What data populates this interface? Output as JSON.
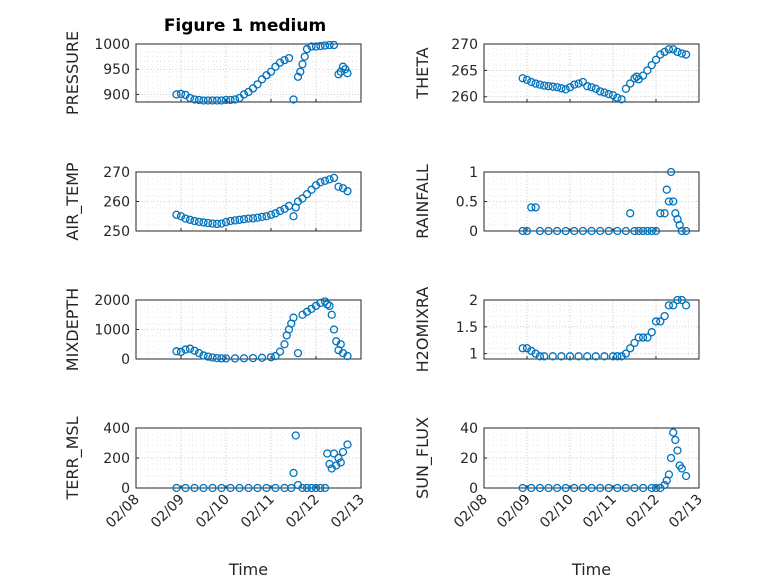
{
  "figure_title": "Figure 1 medium",
  "xtick_labels": [
    "02/08",
    "02/09",
    "02/10",
    "02/11",
    "02/12",
    "02/13"
  ],
  "marker_color": "#0072BD",
  "chart_data": [
    {
      "type": "scatter",
      "title": "Figure 1 medium",
      "xlabel": "",
      "ylabel": "PRESSURE",
      "xlim": [
        0,
        5
      ],
      "ylim": [
        885,
        1000
      ],
      "yticks": [
        900,
        950,
        1000
      ],
      "grid": true,
      "series": [
        {
          "x": [
            0.9,
            1.0,
            1.1,
            1.2,
            1.3,
            1.4,
            1.5,
            1.6,
            1.7,
            1.8,
            1.9,
            2.0,
            2.1,
            2.2,
            2.3,
            2.4,
            2.5,
            2.6,
            2.7,
            2.8,
            2.9,
            3.0,
            3.1,
            3.2,
            3.3,
            3.4,
            3.5,
            3.6,
            3.65,
            3.7,
            3.75,
            3.8,
            3.9,
            4.0,
            4.1,
            4.2,
            4.3,
            4.4,
            4.5,
            4.55,
            4.6,
            4.65,
            4.7
          ],
          "y": [
            900,
            901,
            899,
            893,
            890,
            889,
            888,
            888,
            888,
            888,
            888,
            889,
            889,
            890,
            893,
            900,
            905,
            912,
            920,
            930,
            938,
            945,
            955,
            963,
            968,
            972,
            890,
            935,
            945,
            960,
            975,
            990,
            995,
            995,
            996,
            997,
            998,
            998,
            940,
            945,
            955,
            950,
            942
          ]
        }
      ]
    },
    {
      "type": "scatter",
      "title": "",
      "xlabel": "",
      "ylabel": "THETA",
      "xlim": [
        0,
        5
      ],
      "ylim": [
        259,
        270
      ],
      "yticks": [
        260,
        265,
        270
      ],
      "grid": true,
      "series": [
        {
          "x": [
            0.9,
            1.0,
            1.1,
            1.2,
            1.3,
            1.4,
            1.5,
            1.6,
            1.7,
            1.8,
            1.9,
            2.0,
            2.1,
            2.2,
            2.3,
            2.4,
            2.5,
            2.6,
            2.7,
            2.8,
            2.9,
            3.0,
            3.1,
            3.2,
            3.3,
            3.4,
            3.5,
            3.55,
            3.6,
            3.7,
            3.8,
            3.9,
            4.0,
            4.1,
            4.2,
            4.3,
            4.4,
            4.5,
            4.6,
            4.7
          ],
          "y": [
            263.5,
            263.2,
            262.8,
            262.5,
            262.3,
            262.1,
            262,
            261.9,
            261.8,
            261.6,
            261.4,
            261.8,
            262.3,
            262.5,
            262.8,
            262,
            261.8,
            261.5,
            261,
            260.8,
            260.5,
            260.3,
            259.8,
            259.5,
            261.5,
            262.5,
            263.5,
            263.8,
            263.3,
            264,
            265,
            266,
            267,
            268,
            268.5,
            269,
            269,
            268.5,
            268.2,
            268
          ]
        }
      ]
    },
    {
      "type": "scatter",
      "title": "",
      "xlabel": "",
      "ylabel": "AIR_TEMP",
      "xlim": [
        0,
        5
      ],
      "ylim": [
        250,
        270
      ],
      "yticks": [
        250,
        260,
        270
      ],
      "grid": true,
      "series": [
        {
          "x": [
            0.9,
            1.0,
            1.1,
            1.2,
            1.3,
            1.4,
            1.5,
            1.6,
            1.7,
            1.8,
            1.9,
            2.0,
            2.1,
            2.2,
            2.3,
            2.4,
            2.5,
            2.6,
            2.7,
            2.8,
            2.9,
            3.0,
            3.1,
            3.2,
            3.3,
            3.4,
            3.5,
            3.55,
            3.6,
            3.7,
            3.8,
            3.9,
            4.0,
            4.1,
            4.2,
            4.3,
            4.4,
            4.5,
            4.6,
            4.7
          ],
          "y": [
            255.5,
            255,
            254.2,
            253.8,
            253.4,
            253.1,
            252.9,
            252.7,
            252.5,
            252.4,
            252.5,
            253,
            253.4,
            253.6,
            253.8,
            254,
            254.2,
            254.3,
            254.5,
            254.8,
            255,
            255.5,
            256,
            256.8,
            257.5,
            258.5,
            255,
            258,
            260,
            261,
            262.5,
            264,
            265.5,
            266.5,
            267,
            267.5,
            268,
            265,
            264.5,
            263.5
          ]
        }
      ]
    },
    {
      "type": "scatter",
      "title": "",
      "xlabel": "",
      "ylabel": "RAINFALL",
      "xlim": [
        0,
        5
      ],
      "ylim": [
        0,
        1
      ],
      "yticks": [
        0,
        0.5,
        1
      ],
      "grid": true,
      "series": [
        {
          "x": [
            0.9,
            1.0,
            1.1,
            1.2,
            1.3,
            1.5,
            1.7,
            1.9,
            2.1,
            2.3,
            2.5,
            2.7,
            2.9,
            3.1,
            3.3,
            3.4,
            3.5,
            3.6,
            3.7,
            3.8,
            3.9,
            4.0,
            4.1,
            4.2,
            4.25,
            4.3,
            4.35,
            4.4,
            4.45,
            4.5,
            4.55,
            4.6,
            4.7
          ],
          "y": [
            0,
            0,
            0.4,
            0.4,
            0,
            0,
            0,
            0,
            0,
            0,
            0,
            0,
            0,
            0,
            0,
            0.3,
            0,
            0,
            0,
            0,
            0,
            0,
            0.3,
            0.3,
            0.7,
            0.5,
            1.0,
            0.5,
            0.3,
            0.2,
            0.1,
            0,
            0
          ]
        }
      ]
    },
    {
      "type": "scatter",
      "title": "",
      "xlabel": "",
      "ylabel": "MIXDEPTH",
      "xlim": [
        0,
        5
      ],
      "ylim": [
        0,
        2000
      ],
      "yticks": [
        0,
        1000,
        2000
      ],
      "grid": true,
      "series": [
        {
          "x": [
            0.9,
            1.0,
            1.1,
            1.2,
            1.3,
            1.4,
            1.5,
            1.6,
            1.7,
            1.8,
            1.9,
            2.0,
            2.2,
            2.4,
            2.6,
            2.8,
            3.0,
            3.1,
            3.2,
            3.3,
            3.35,
            3.4,
            3.45,
            3.5,
            3.6,
            3.7,
            3.8,
            3.9,
            4.0,
            4.1,
            4.2,
            4.25,
            4.3,
            4.35,
            4.4,
            4.45,
            4.5,
            4.55,
            4.6,
            4.7
          ],
          "y": [
            260,
            240,
            320,
            350,
            280,
            200,
            120,
            80,
            50,
            30,
            20,
            20,
            20,
            25,
            30,
            40,
            60,
            100,
            250,
            500,
            800,
            1000,
            1200,
            1400,
            200,
            1500,
            1600,
            1700,
            1800,
            1900,
            1950,
            1850,
            1800,
            1500,
            1000,
            600,
            300,
            500,
            200,
            100
          ]
        }
      ]
    },
    {
      "type": "scatter",
      "title": "",
      "xlabel": "",
      "ylabel": "H2OMIXRA",
      "xlim": [
        0,
        5
      ],
      "ylim": [
        0.9,
        2
      ],
      "yticks": [
        1,
        1.5,
        2
      ],
      "grid": true,
      "series": [
        {
          "x": [
            0.9,
            1.0,
            1.1,
            1.2,
            1.3,
            1.4,
            1.6,
            1.8,
            2.0,
            2.2,
            2.4,
            2.6,
            2.8,
            3.0,
            3.1,
            3.2,
            3.3,
            3.4,
            3.5,
            3.6,
            3.7,
            3.8,
            3.9,
            4.0,
            4.1,
            4.2,
            4.3,
            4.4,
            4.5,
            4.6,
            4.7
          ],
          "y": [
            1.1,
            1.1,
            1.05,
            1.0,
            0.95,
            0.95,
            0.95,
            0.95,
            0.95,
            0.95,
            0.95,
            0.95,
            0.95,
            0.95,
            0.95,
            0.95,
            1.0,
            1.1,
            1.2,
            1.3,
            1.3,
            1.3,
            1.4,
            1.6,
            1.6,
            1.7,
            1.9,
            1.9,
            2.0,
            2.0,
            1.9
          ]
        }
      ]
    },
    {
      "type": "scatter",
      "title": "",
      "xlabel": "Time",
      "ylabel": "TERR_MSL",
      "xlim": [
        0,
        5
      ],
      "ylim": [
        0,
        400
      ],
      "yticks": [
        0,
        200,
        400
      ],
      "grid": true,
      "series": [
        {
          "x": [
            0.9,
            1.1,
            1.3,
            1.5,
            1.7,
            1.9,
            2.1,
            2.3,
            2.5,
            2.7,
            2.9,
            3.1,
            3.3,
            3.45,
            3.5,
            3.55,
            3.6,
            3.7,
            3.8,
            3.9,
            4.0,
            4.1,
            4.2,
            4.25,
            4.3,
            4.35,
            4.4,
            4.45,
            4.5,
            4.55,
            4.6,
            4.7
          ],
          "y": [
            0,
            0,
            0,
            0,
            0,
            0,
            0,
            0,
            0,
            0,
            0,
            0,
            0,
            0,
            100,
            350,
            20,
            0,
            0,
            0,
            0,
            0,
            0,
            230,
            160,
            130,
            230,
            150,
            200,
            170,
            240,
            290
          ]
        }
      ]
    },
    {
      "type": "scatter",
      "title": "",
      "xlabel": "Time",
      "ylabel": "SUN_FLUX",
      "xlim": [
        0,
        5
      ],
      "ylim": [
        0,
        40
      ],
      "yticks": [
        0,
        20,
        40
      ],
      "grid": true,
      "series": [
        {
          "x": [
            0.9,
            1.1,
            1.3,
            1.5,
            1.7,
            1.9,
            2.1,
            2.3,
            2.5,
            2.7,
            2.9,
            3.1,
            3.3,
            3.5,
            3.7,
            3.9,
            4.0,
            4.1,
            4.2,
            4.25,
            4.3,
            4.35,
            4.4,
            4.45,
            4.5,
            4.55,
            4.6,
            4.7
          ],
          "y": [
            0,
            0,
            0,
            0,
            0,
            0,
            0,
            0,
            0,
            0,
            0,
            0,
            0,
            0,
            0,
            0,
            0,
            0,
            2,
            5,
            9,
            20,
            37,
            32,
            25,
            15,
            13,
            8
          ]
        }
      ]
    }
  ]
}
